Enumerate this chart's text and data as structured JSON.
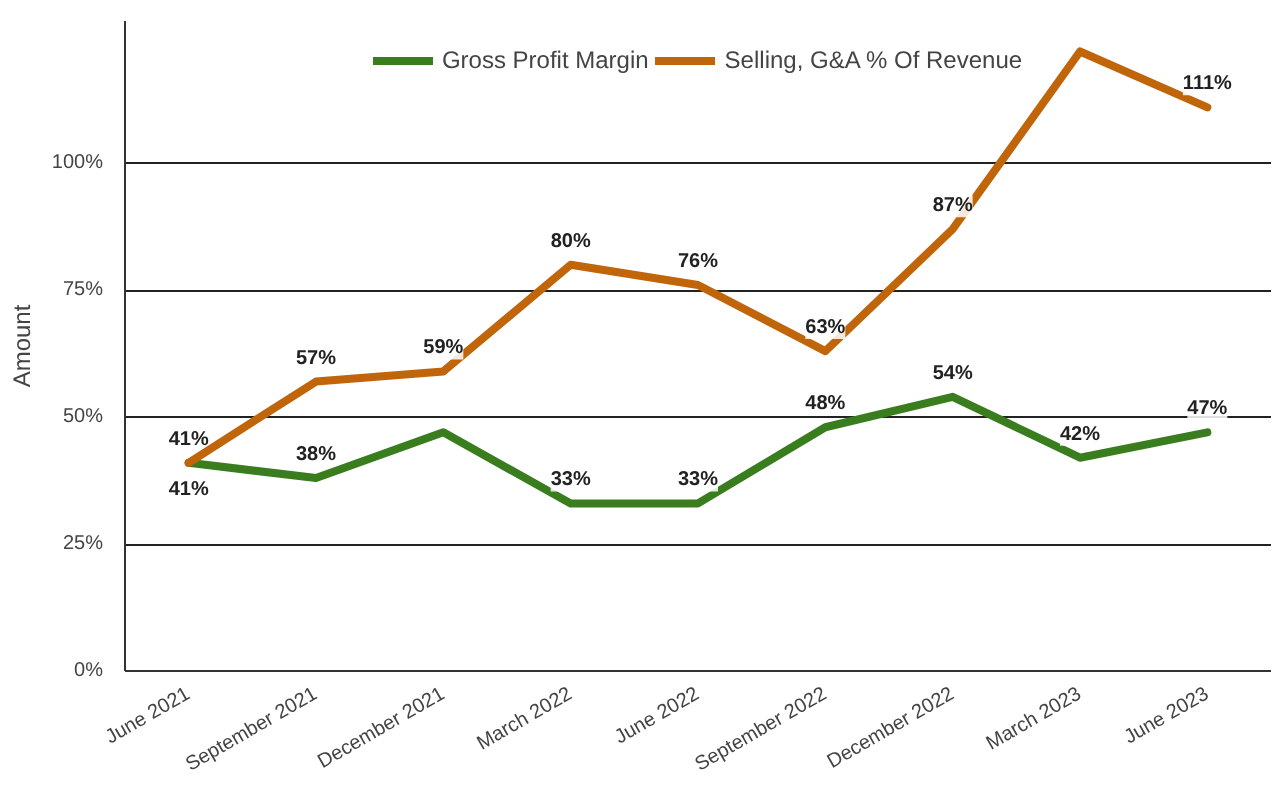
{
  "chart_data": {
    "type": "line",
    "ylabel": "Amount",
    "categories": [
      "June 2021",
      "September 2021",
      "December 2021",
      "March 2022",
      "June 2022",
      "September 2022",
      "December 2022",
      "March 2023",
      "June 2023"
    ],
    "series": [
      {
        "name": "Gross Profit Margin",
        "color": "#3a7d1e",
        "values": [
          41,
          38,
          47,
          33,
          33,
          48,
          54,
          42,
          47
        ],
        "value_labels": [
          "41%",
          "38%",
          null,
          "33%",
          "33%",
          "48%",
          "54%",
          "42%",
          "47%"
        ]
      },
      {
        "name": "Selling, G&A % Of Revenue",
        "color": "#c0650a",
        "values": [
          41,
          57,
          59,
          80,
          76,
          63,
          87,
          122,
          111
        ],
        "value_labels": [
          "41%",
          "57%",
          "59%",
          "80%",
          "76%",
          "63%",
          "87%",
          null,
          "111%"
        ]
      }
    ],
    "ylim": [
      0,
      128
    ],
    "yticks": [
      {
        "value": 0,
        "label": "0%"
      },
      {
        "value": 25,
        "label": "25%"
      },
      {
        "value": 50,
        "label": "50%"
      },
      {
        "value": 75,
        "label": "75%"
      },
      {
        "value": 100,
        "label": "100%"
      }
    ],
    "grid": "y",
    "legend": "top",
    "line_style": "solid"
  }
}
